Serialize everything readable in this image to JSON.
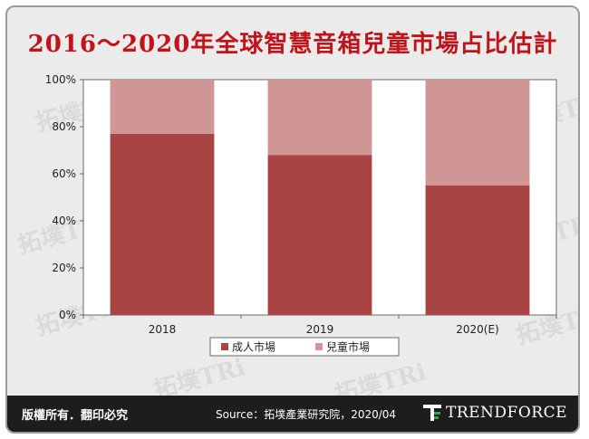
{
  "header": {
    "title": "2016～2020年全球智慧音箱兒童市場占比估計"
  },
  "watermark_text": "拓墣TRi",
  "chart_data": {
    "type": "bar",
    "stacked": true,
    "title": "2016～2020年全球智慧音箱兒童市場占比估計",
    "categories": [
      "2018",
      "2019",
      "2020(E)"
    ],
    "series": [
      {
        "name": "成人市場",
        "values": [
          77,
          68,
          55
        ],
        "color": "#a84444"
      },
      {
        "name": "兒童市場",
        "values": [
          23,
          32,
          45
        ],
        "color": "#d09595"
      }
    ],
    "yticks": [
      "0%",
      "20%",
      "40%",
      "60%",
      "80%",
      "100%"
    ],
    "ylim": [
      0,
      100
    ],
    "grid": false,
    "legend_position": "bottom"
  },
  "footer": {
    "rights": "版權所有．翻印必究",
    "source": "Source：拓墣產業研究院，2020/04",
    "brand": "TRENDFORCE"
  }
}
